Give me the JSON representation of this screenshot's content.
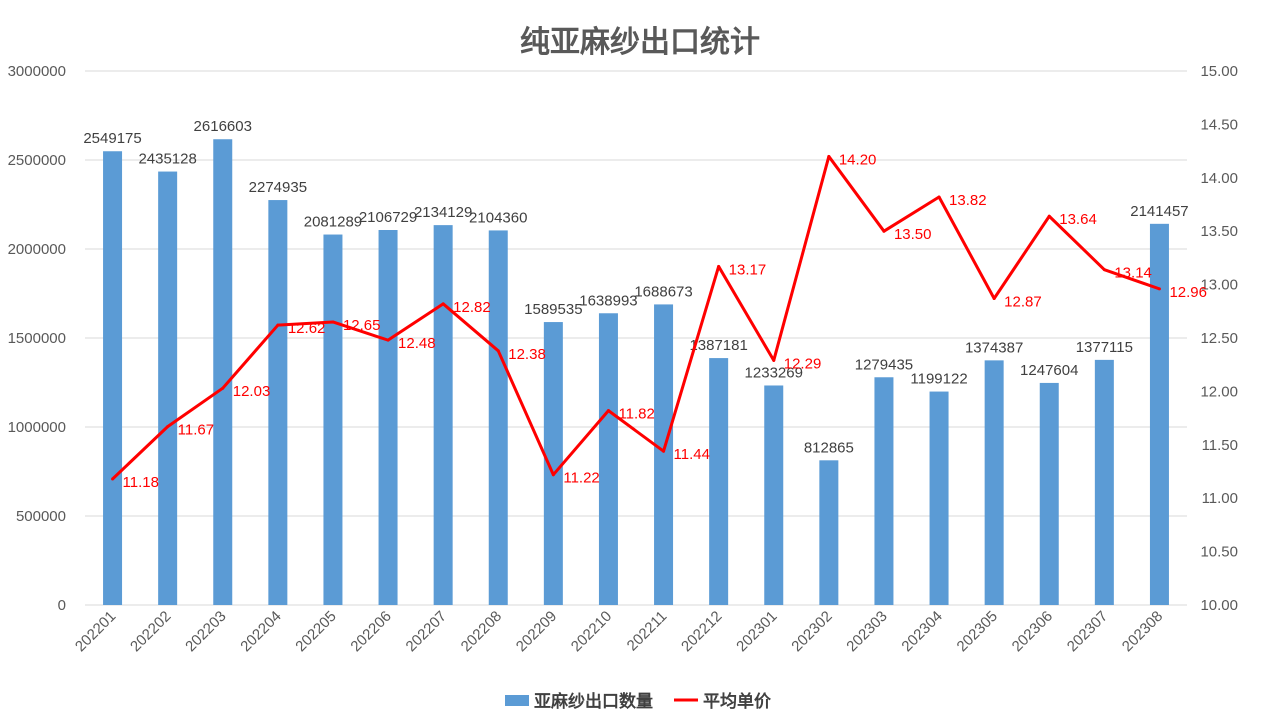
{
  "chart_data": {
    "type": "bar+line",
    "title": "纯亚麻纱出口统计",
    "categories": [
      "202201",
      "202202",
      "202203",
      "202204",
      "202205",
      "202206",
      "202207",
      "202208",
      "202209",
      "202210",
      "202211",
      "202212",
      "202301",
      "202302",
      "202303",
      "202304",
      "202305",
      "202306",
      "202307",
      "202308"
    ],
    "series": [
      {
        "name": "亚麻纱出口数量",
        "type": "bar",
        "axis": "left",
        "color": "#5b9bd5",
        "values": [
          2549175,
          2435128,
          2616603,
          2274935,
          2081289,
          2106729,
          2134129,
          2104360,
          1589535,
          1638993,
          1688673,
          1387181,
          1233269,
          812865,
          1279435,
          1199122,
          1374387,
          1247604,
          1377115,
          2141457
        ],
        "labels": [
          "2549175",
          "2435128",
          "2616603",
          "2274935",
          "2081289",
          "2106729",
          "2134129",
          "2104360",
          "1589535",
          "1638993",
          "1688673",
          "1387181",
          "1233269",
          "812865",
          "1279435",
          "1199122",
          "1374387",
          "1247604",
          "1377115",
          "2141457"
        ]
      },
      {
        "name": "平均单价",
        "type": "line",
        "axis": "right",
        "color": "#ff0000",
        "values": [
          11.18,
          11.67,
          12.03,
          12.62,
          12.65,
          12.48,
          12.82,
          12.38,
          11.22,
          11.82,
          11.44,
          13.17,
          12.29,
          14.2,
          13.5,
          13.82,
          12.87,
          13.64,
          13.14,
          12.96
        ],
        "labels": [
          "11.18",
          "11.67",
          "12.03",
          "12.62",
          "12.65",
          "12.48",
          "12.82",
          "12.38",
          "11.22",
          "11.82",
          "11.44",
          "13.17",
          "12.29",
          "14.20",
          "13.50",
          "13.82",
          "12.87",
          "13.64",
          "13.14",
          "12.96"
        ]
      }
    ],
    "y_left": {
      "range": [
        0,
        3000000
      ],
      "ticks": [
        0,
        500000,
        1000000,
        1500000,
        2000000,
        2500000,
        3000000
      ],
      "tick_labels": [
        "0",
        "500000",
        "1000000",
        "1500000",
        "2000000",
        "2500000",
        "3000000"
      ]
    },
    "y_right": {
      "range": [
        10,
        15
      ],
      "ticks": [
        10,
        10.5,
        11,
        11.5,
        12,
        12.5,
        13,
        13.5,
        14,
        14.5,
        15
      ],
      "tick_labels": [
        "10.00",
        "10.50",
        "11.00",
        "11.50",
        "12.00",
        "12.50",
        "13.00",
        "13.50",
        "14.00",
        "14.50",
        "15.00"
      ]
    },
    "grid": true,
    "legend_position": "bottom"
  }
}
